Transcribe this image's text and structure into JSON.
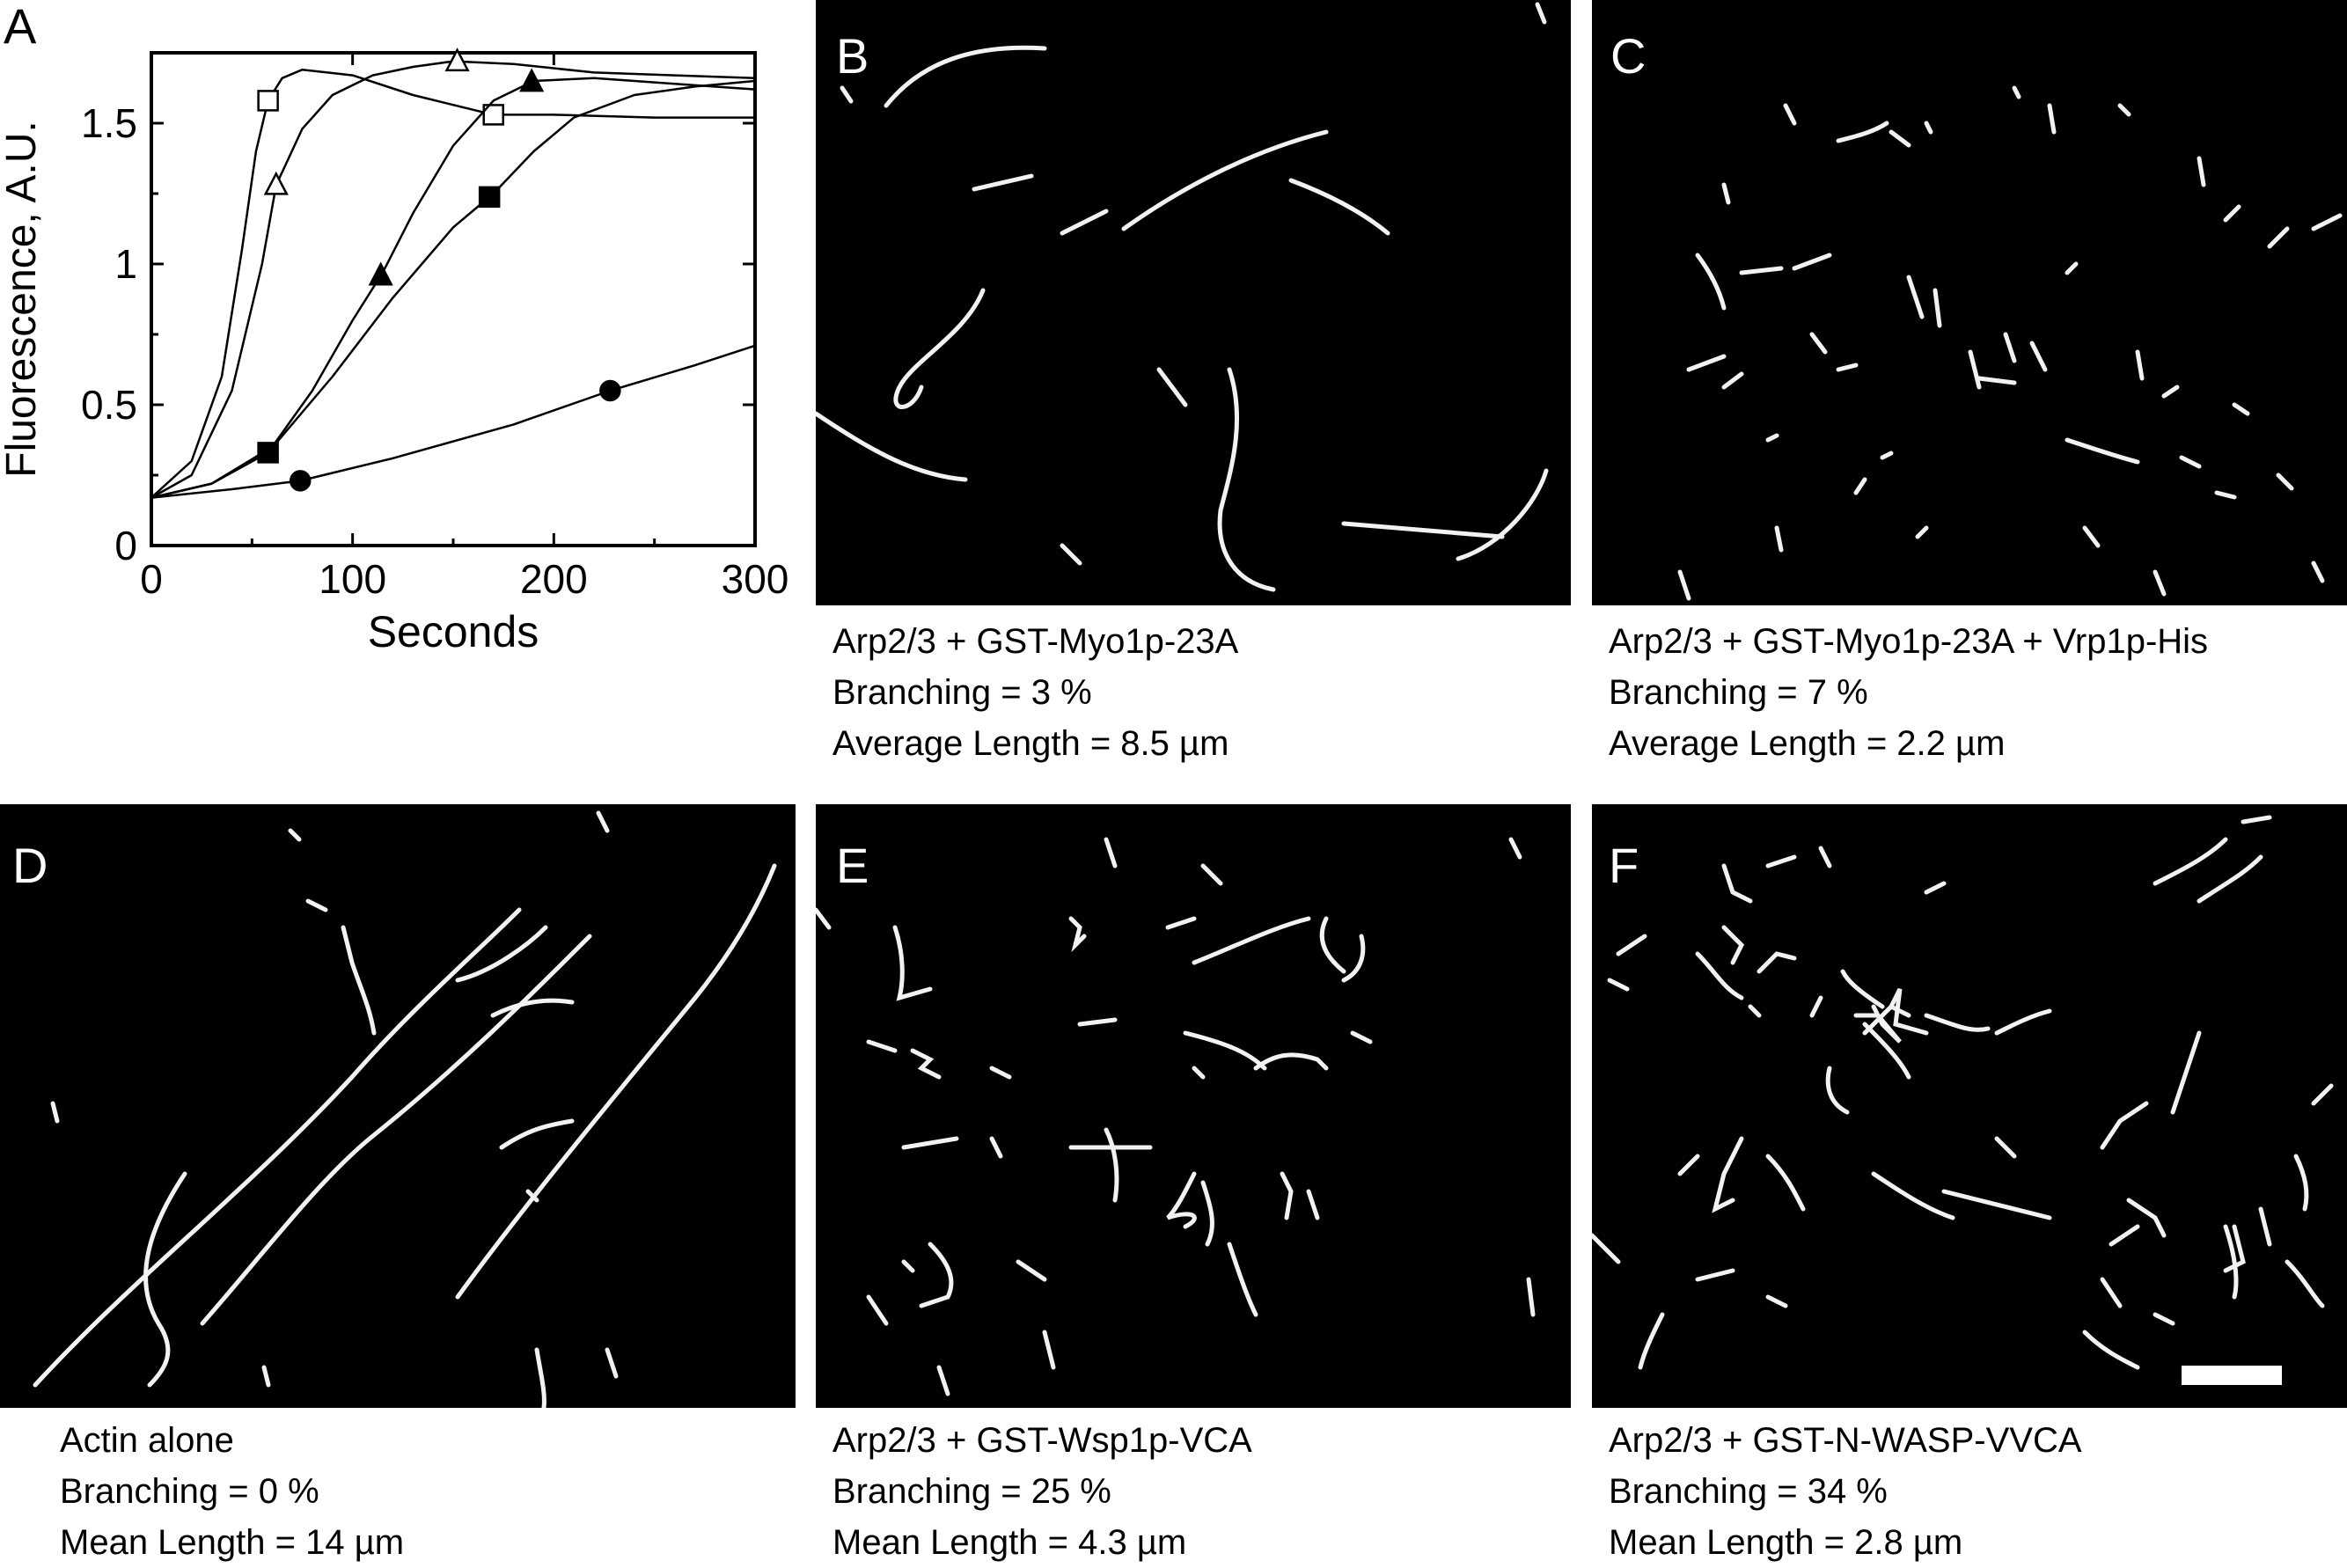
{
  "panels": {
    "A": {
      "letter": "A"
    },
    "B": {
      "letter": "B",
      "caption": [
        "Arp2/3 + GST-Myo1p-23A",
        "Branching = 3 %",
        "Average Length = 8.5 µm"
      ]
    },
    "C": {
      "letter": "C",
      "caption": [
        "Arp2/3 + GST-Myo1p-23A + Vrp1p-His",
        "Branching = 7 %",
        "Average Length = 2.2 µm"
      ]
    },
    "D": {
      "letter": "D",
      "caption": [
        "Actin alone",
        "Branching = 0 %",
        "Mean Length = 14 µm"
      ]
    },
    "E": {
      "letter": "E",
      "caption": [
        "Arp2/3 + GST-Wsp1p-VCA",
        "Branching = 25 %",
        "Mean Length = 4.3 µm"
      ]
    },
    "F": {
      "letter": "F",
      "caption": [
        "Arp2/3 + GST-N-WASP-VVCA",
        "Branching = 34 %",
        "Mean Length = 2.8 µm"
      ]
    }
  },
  "colors": {
    "micrograph_background": "#000000",
    "filament": "#f2f2f2",
    "scale_bar": "#ffffff"
  },
  "chart_data": {
    "type": "line",
    "title": "",
    "xlabel": "Seconds",
    "ylabel": "Fluorescence, A.U.",
    "xlim": [
      0,
      300
    ],
    "ylim": [
      0,
      1.75
    ],
    "xticks": [
      0,
      100,
      200,
      300
    ],
    "yticks": [
      0,
      0.5,
      1,
      1.5
    ],
    "ytick_labels": [
      "0",
      "0.5",
      "1",
      "1.5"
    ],
    "grid": false,
    "series": [
      {
        "marker": "open-square",
        "x": [
          0,
          20,
          35,
          45,
          52,
          58,
          65,
          75,
          100,
          130,
          170,
          200,
          250,
          300
        ],
        "y": [
          0.17,
          0.3,
          0.6,
          1.05,
          1.4,
          1.58,
          1.66,
          1.69,
          1.67,
          1.6,
          1.53,
          1.53,
          1.52,
          1.52
        ],
        "markers_x": [
          58,
          170
        ]
      },
      {
        "marker": "open-triangle",
        "x": [
          0,
          20,
          40,
          55,
          62,
          75,
          90,
          110,
          130,
          150,
          180,
          220,
          260,
          300
        ],
        "y": [
          0.17,
          0.25,
          0.55,
          1.0,
          1.28,
          1.48,
          1.6,
          1.67,
          1.7,
          1.72,
          1.71,
          1.68,
          1.67,
          1.66
        ],
        "markers_x": [
          62,
          152
        ]
      },
      {
        "marker": "filled-triangle",
        "x": [
          0,
          30,
          60,
          80,
          100,
          115,
          130,
          150,
          170,
          190,
          220,
          260,
          300
        ],
        "y": [
          0.17,
          0.22,
          0.35,
          0.55,
          0.8,
          0.97,
          1.18,
          1.42,
          1.58,
          1.65,
          1.66,
          1.64,
          1.62
        ],
        "markers_x": [
          114,
          189
        ]
      },
      {
        "marker": "filled-square",
        "x": [
          0,
          30,
          58,
          90,
          120,
          150,
          170,
          190,
          210,
          240,
          270,
          300
        ],
        "y": [
          0.17,
          0.22,
          0.33,
          0.6,
          0.88,
          1.13,
          1.25,
          1.4,
          1.52,
          1.6,
          1.63,
          1.65
        ],
        "markers_x": [
          58,
          168
        ]
      },
      {
        "marker": "filled-circle",
        "x": [
          0,
          40,
          74,
          120,
          180,
          228,
          270,
          300
        ],
        "y": [
          0.17,
          0.2,
          0.23,
          0.31,
          0.43,
          0.55,
          0.64,
          0.71
        ],
        "markers_x": [
          74,
          228
        ]
      }
    ]
  }
}
